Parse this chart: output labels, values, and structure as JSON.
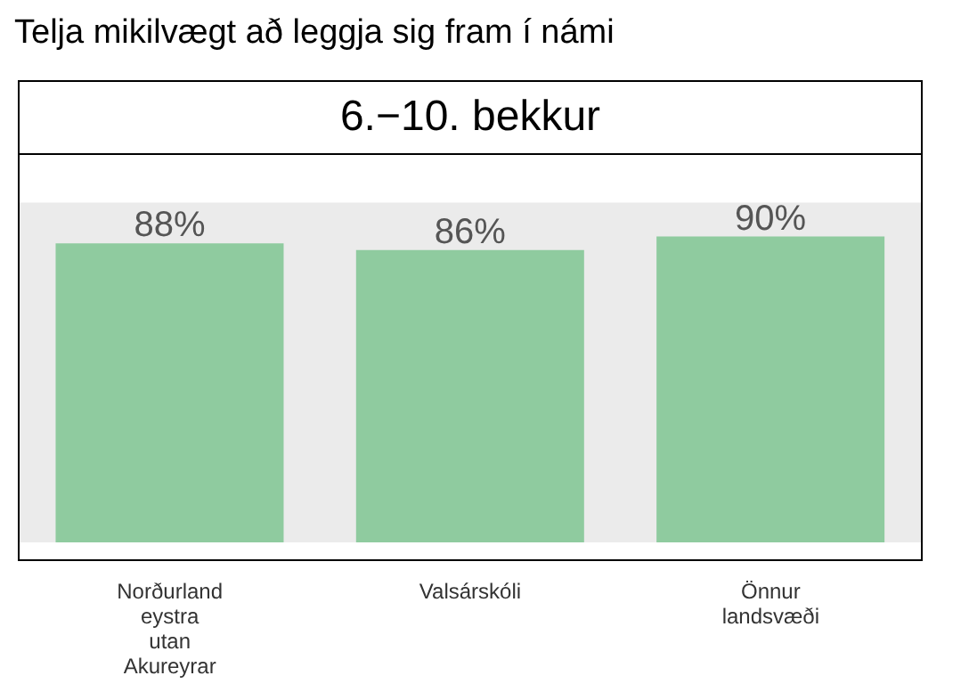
{
  "chart_data": {
    "type": "bar",
    "title": "Telja mikilvægt að leggja sig fram í námi",
    "subtitle": "6.−10. bekkur",
    "categories": [
      "Norðurland eystra utan Akureyrar",
      "Valsárskóli",
      "Önnur landsvæði"
    ],
    "values": [
      88,
      86,
      90
    ],
    "value_labels": [
      "88%",
      "86%",
      "90%"
    ],
    "color": "#8fcb9f",
    "ylim": [
      -5,
      114
    ],
    "tick_labels": "x",
    "grid": false,
    "bands": [
      {
        "axis": "y",
        "from": 0,
        "to": 100,
        "color": "#ebebeb"
      }
    ]
  }
}
